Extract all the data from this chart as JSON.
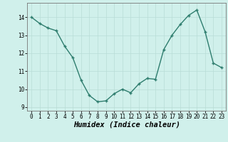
{
  "x": [
    0,
    1,
    2,
    3,
    4,
    5,
    6,
    7,
    8,
    9,
    10,
    11,
    12,
    13,
    14,
    15,
    16,
    17,
    18,
    19,
    20,
    21,
    22,
    23
  ],
  "y": [
    14.0,
    13.65,
    13.4,
    13.25,
    12.4,
    11.75,
    10.5,
    9.65,
    9.3,
    9.35,
    9.75,
    10.0,
    9.8,
    10.3,
    10.6,
    10.55,
    12.2,
    13.0,
    13.6,
    14.1,
    14.4,
    13.2,
    11.45,
    11.2
  ],
  "line_color": "#2e7d6e",
  "marker": "+",
  "marker_size": 3.5,
  "marker_linewidth": 1.0,
  "bg_color": "#d0f0eb",
  "grid_color": "#b8ddd6",
  "xlabel": "Humidex (Indice chaleur)",
  "xlim": [
    -0.5,
    23.5
  ],
  "ylim": [
    8.8,
    14.8
  ],
  "yticks": [
    9,
    10,
    11,
    12,
    13,
    14
  ],
  "xticks": [
    0,
    1,
    2,
    3,
    4,
    5,
    6,
    7,
    8,
    9,
    10,
    11,
    12,
    13,
    14,
    15,
    16,
    17,
    18,
    19,
    20,
    21,
    22,
    23
  ],
  "tick_fontsize": 5.5,
  "xlabel_fontsize": 7.5,
  "linewidth": 1.0
}
